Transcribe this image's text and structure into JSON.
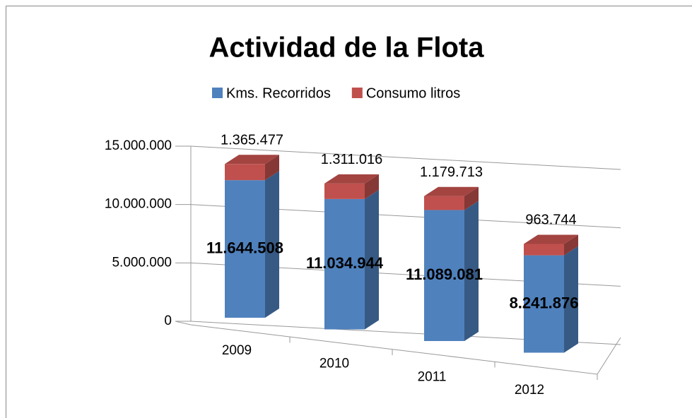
{
  "chart_data": {
    "type": "bar3d_stacked",
    "title": "Actividad de la Flota",
    "categories": [
      "2009",
      "2010",
      "2011",
      "2012"
    ],
    "series": [
      {
        "name": "Kms. Recorridos",
        "color": "#4f81bd",
        "values": [
          11644508,
          11034944,
          11089081,
          8241876
        ],
        "value_labels": [
          "11.644.508",
          "11.034.944",
          "11.089.081",
          "8.241.876"
        ]
      },
      {
        "name": "Consumo litros",
        "color": "#c0504d",
        "values": [
          1365477,
          1311016,
          1179713,
          963744
        ],
        "value_labels": [
          "1.365.477",
          "1.311.016",
          "1.179.713",
          "963.744"
        ]
      }
    ],
    "ylim": [
      0,
      15000000
    ],
    "yticks": [
      0,
      {
        "value": 5000000,
        "label": "5.000.000"
      },
      {
        "value": 10000000,
        "label": "10.000.000"
      },
      {
        "value": 15000000,
        "label": "15.000.000"
      }
    ],
    "grid": true,
    "legend": "top"
  }
}
